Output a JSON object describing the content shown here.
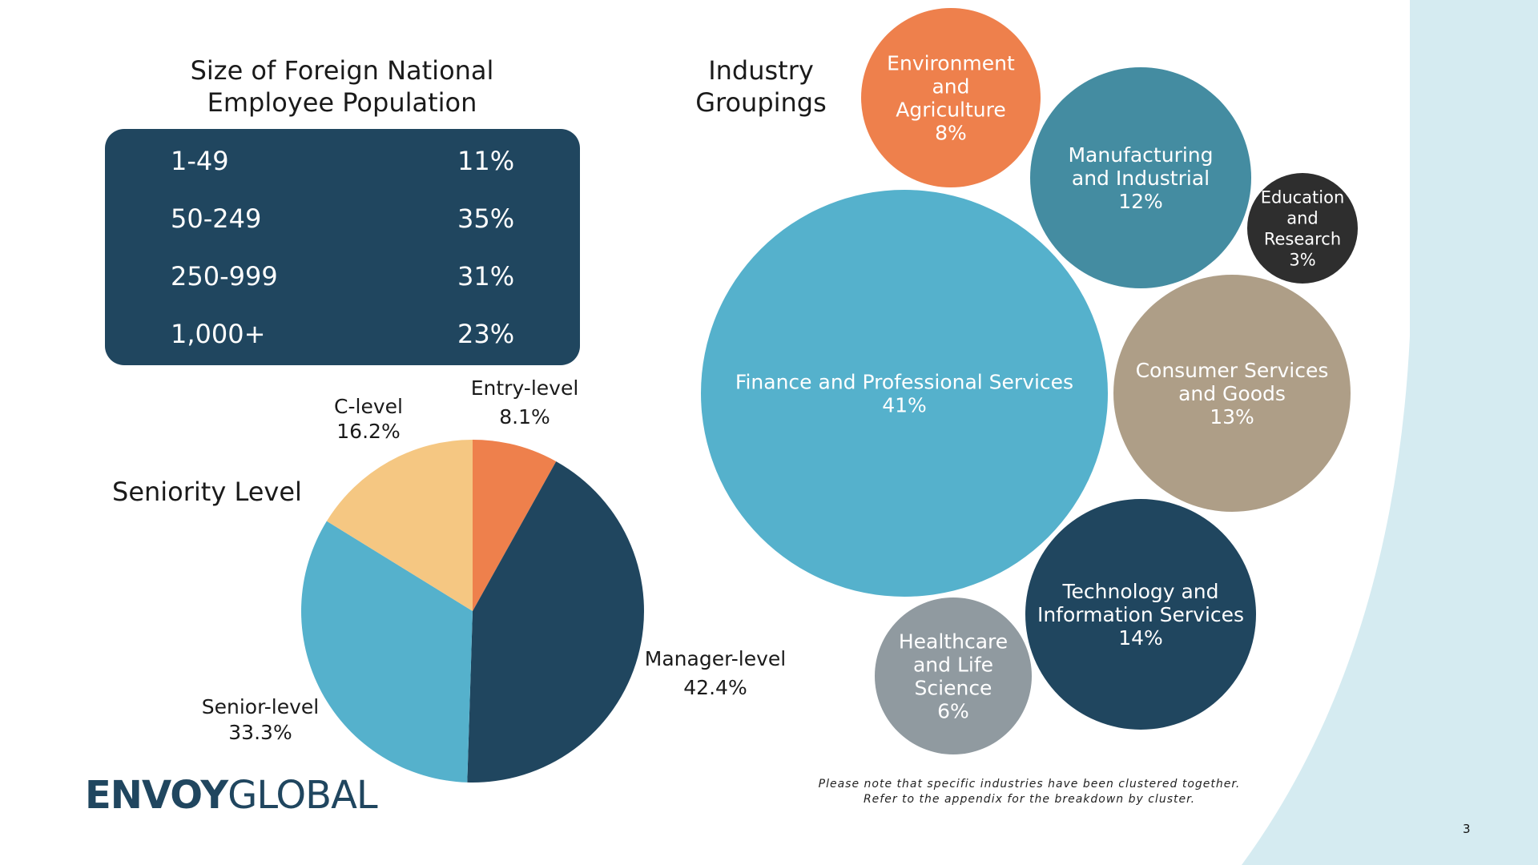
{
  "colors": {
    "navy": "#20465f",
    "sky": "#55b1cc",
    "teal": "#448ca1",
    "orange": "#ee804c",
    "sand": "#f5c782",
    "taupe": "#ae9e87",
    "charcoal": "#2e2e2e",
    "gray": "#909aa0",
    "background_accent": "#d5ebf1"
  },
  "population": {
    "title_line1": "Size of Foreign National",
    "title_line2": "Employee Population",
    "rows": [
      {
        "range": "1-49",
        "pct": "11%"
      },
      {
        "range": "50-249",
        "pct": "35%"
      },
      {
        "range": "250-999",
        "pct": "31%"
      },
      {
        "range": "1,000+",
        "pct": "23%"
      }
    ]
  },
  "industry": {
    "title_line1": "Industry",
    "title_line2": "Groupings"
  },
  "seniority": {
    "title": "Seniority Level"
  },
  "chart_data": [
    {
      "type": "pie",
      "title": "Seniority Level",
      "slices": [
        {
          "name": "Entry-level",
          "value": 8.1,
          "label": "8.1%",
          "color": "#ee804c"
        },
        {
          "name": "Manager-level",
          "value": 42.4,
          "label": "42.4%",
          "color": "#20465f"
        },
        {
          "name": "Senior-level",
          "value": 33.3,
          "label": "33.3%",
          "color": "#55b1cc"
        },
        {
          "name": "C-level",
          "value": 16.2,
          "label": "16.2%",
          "color": "#f5c782"
        }
      ]
    },
    {
      "type": "bubble",
      "title": "Industry Groupings",
      "bubbles": [
        {
          "name": "Finance and Professional Services",
          "lines": [
            "Finance and Professional Services"
          ],
          "value": 41,
          "label": "41%",
          "color": "#55b1cc"
        },
        {
          "name": "Technology and Information Services",
          "lines": [
            "Technology and",
            "Information Services"
          ],
          "value": 14,
          "label": "14%",
          "color": "#20465f"
        },
        {
          "name": "Consumer Services and Goods",
          "lines": [
            "Consumer Services",
            "and Goods"
          ],
          "value": 13,
          "label": "13%",
          "color": "#ae9e87"
        },
        {
          "name": "Manufacturing and Industrial",
          "lines": [
            "Manufacturing",
            "and Industrial"
          ],
          "value": 12,
          "label": "12%",
          "color": "#448ca1"
        },
        {
          "name": "Environment and Agriculture",
          "lines": [
            "Environment",
            "and",
            "Agriculture"
          ],
          "value": 8,
          "label": "8%",
          "color": "#ee804c"
        },
        {
          "name": "Healthcare and Life Science",
          "lines": [
            "Healthcare",
            "and Life",
            "Science"
          ],
          "value": 6,
          "label": "6%",
          "color": "#909aa0"
        },
        {
          "name": "Education and Research",
          "lines": [
            "Education",
            "and",
            "Research"
          ],
          "value": 3,
          "label": "3%",
          "color": "#2e2e2e"
        }
      ]
    }
  ],
  "footer": {
    "logo_bold": "ENVOY",
    "logo_light": "GLOBAL",
    "note_line1": "Please note that specific industries have been clustered together.",
    "note_line2": "Refer to the appendix for the breakdown by cluster.",
    "page_number": "3"
  }
}
